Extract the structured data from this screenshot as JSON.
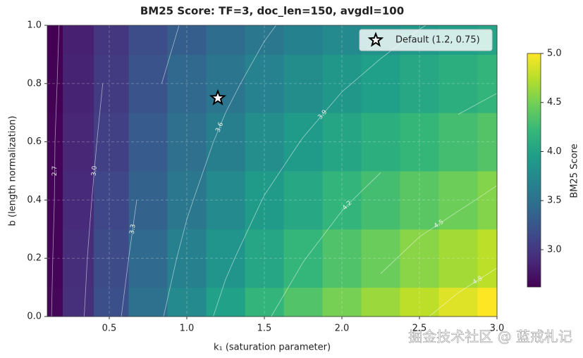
{
  "chart_data": {
    "type": "heatmap",
    "title": "BM25 Score: TF=3, doc_len=150, avgdl=100",
    "xlabel": "k₁ (saturation parameter)",
    "ylabel": "b (length normalization)",
    "x": [
      0.1,
      0.3,
      0.5,
      0.75,
      1.0,
      1.25,
      1.5,
      1.75,
      2.0,
      2.25,
      2.5,
      2.75,
      3.0
    ],
    "y": [
      0,
      0.2,
      0.4,
      0.6,
      0.8,
      1.0
    ],
    "z": [
      [
        2.66,
        2.95,
        3.21,
        3.5,
        3.75,
        3.97,
        4.17,
        4.34,
        4.5,
        4.64,
        4.77,
        4.89,
        5.0
      ],
      [
        2.65,
        2.93,
        3.17,
        3.43,
        3.66,
        3.86,
        4.03,
        4.19,
        4.33,
        4.45,
        4.57,
        4.67,
        4.76
      ],
      [
        2.64,
        2.9,
        3.13,
        3.37,
        3.57,
        3.75,
        3.91,
        4.04,
        4.17,
        4.28,
        4.38,
        4.46,
        4.55
      ],
      [
        2.64,
        2.88,
        3.08,
        3.3,
        3.49,
        3.65,
        3.79,
        3.91,
        4.02,
        4.11,
        4.2,
        4.28,
        4.35
      ],
      [
        2.63,
        2.85,
        3.04,
        3.24,
        3.41,
        3.55,
        3.68,
        3.78,
        3.88,
        3.96,
        4.04,
        4.11,
        4.17
      ],
      [
        2.62,
        2.83,
        3.0,
        3.18,
        3.33,
        3.46,
        3.57,
        3.67,
        3.75,
        3.82,
        3.89,
        3.95,
        4.0
      ]
    ],
    "xlim": [
      0.1,
      3.0
    ],
    "ylim": [
      0,
      1.0
    ],
    "zlim": [
      2.62,
      5.0
    ],
    "xticks": [
      {
        "value": 0.5,
        "label": "0.5"
      },
      {
        "value": 1.0,
        "label": "1.0"
      },
      {
        "value": 1.5,
        "label": "1.5"
      },
      {
        "value": 2.0,
        "label": "2.0"
      },
      {
        "value": 2.5,
        "label": "2.5"
      },
      {
        "value": 3.0,
        "label": "3.0"
      }
    ],
    "yticks": [
      {
        "value": 0,
        "label": "0.0"
      },
      {
        "value": 0.2,
        "label": "0.2"
      },
      {
        "value": 0.4,
        "label": "0.4"
      },
      {
        "value": 0.6,
        "label": "0.6"
      },
      {
        "value": 0.8,
        "label": "0.8"
      },
      {
        "value": 1.0,
        "label": "1.0"
      }
    ],
    "grid": true,
    "colormap": "viridis",
    "contour_levels": [
      {
        "value": 2.7,
        "label": "2.7"
      },
      {
        "value": 3.0,
        "label": "3.0"
      },
      {
        "value": 3.3,
        "label": "3.3"
      },
      {
        "value": 3.6,
        "label": "3.6"
      },
      {
        "value": 3.9,
        "label": "3.9"
      },
      {
        "value": 4.2,
        "label": "4.2"
      },
      {
        "value": 4.5,
        "label": "4.5"
      },
      {
        "value": 4.8,
        "label": "4.8"
      }
    ],
    "colorbar": {
      "label": "BM25 Score",
      "ticks": [
        {
          "value": 3.0,
          "label": "3.0"
        },
        {
          "value": 3.5,
          "label": "3.5"
        },
        {
          "value": 4.0,
          "label": "4.0"
        },
        {
          "value": 4.5,
          "label": "4.5"
        },
        {
          "value": 5.0,
          "label": "5.0"
        }
      ]
    },
    "marker": {
      "label": "Default (1.2, 0.75)",
      "x": 1.2,
      "y": 0.75
    },
    "legend_position": "upper right",
    "watermark": "掘金技术社区 @ 蓝戒札记"
  }
}
